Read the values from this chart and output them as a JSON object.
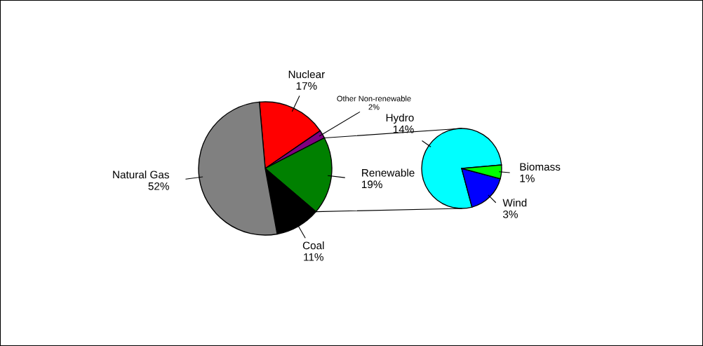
{
  "chart_data": [
    {
      "type": "pie",
      "categories": [
        "Nuclear",
        "Other Non-renewable",
        "Renewable",
        "Coal",
        "Natural Gas"
      ],
      "values": [
        17,
        2,
        19,
        11,
        52
      ],
      "colors": [
        "#ff0000",
        "#800080",
        "#008000",
        "#000000",
        "#808080"
      ],
      "value_labels": [
        "17%",
        "2%",
        "19%",
        "11%",
        "52%"
      ]
    },
    {
      "type": "pie",
      "categories": [
        "Hydro",
        "Wind",
        "Biomass"
      ],
      "values": [
        14,
        3,
        1
      ],
      "colors": [
        "#00ffff",
        "#0000ff",
        "#00ff00"
      ],
      "value_labels": [
        "14%",
        "3%",
        "1%"
      ]
    }
  ]
}
